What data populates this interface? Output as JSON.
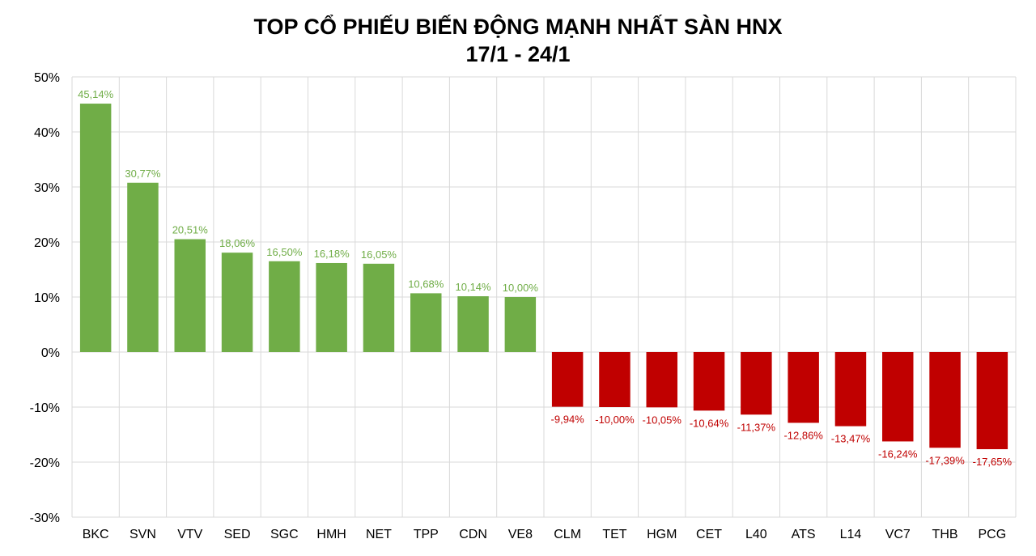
{
  "chart_data": {
    "type": "bar",
    "title": "TOP CỔ PHIẾU BIẾN ĐỘNG MẠNH NHẤT SÀN HNX",
    "subtitle": "17/1 - 24/1",
    "categories": [
      "BKC",
      "SVN",
      "VTV",
      "SED",
      "SGC",
      "HMH",
      "NET",
      "TPP",
      "CDN",
      "VE8",
      "CLM",
      "TET",
      "HGM",
      "CET",
      "L40",
      "ATS",
      "L14",
      "VC7",
      "THB",
      "PCG"
    ],
    "values": [
      45.14,
      30.77,
      20.51,
      18.06,
      16.5,
      16.18,
      16.05,
      10.68,
      10.14,
      10.0,
      -9.94,
      -10.0,
      -10.05,
      -10.64,
      -11.37,
      -12.86,
      -13.47,
      -16.24,
      -17.39,
      -17.65
    ],
    "data_labels": [
      "45,14%",
      "30,77%",
      "20,51%",
      "18,06%",
      "16,50%",
      "16,18%",
      "16,05%",
      "10,68%",
      "10,14%",
      "10,00%",
      "-9,94%",
      "-10,00%",
      "-10,05%",
      "-10,64%",
      "-11,37%",
      "-12,86%",
      "-13,47%",
      "-16,24%",
      "-17,39%",
      "-17,65%"
    ],
    "ylim": [
      -30,
      50
    ],
    "yticks": [
      50,
      40,
      30,
      20,
      10,
      0,
      -10,
      -20,
      -30
    ],
    "ytick_labels": [
      "50%",
      "40%",
      "30%",
      "20%",
      "10%",
      "0%",
      "-10%",
      "-20%",
      "-30%"
    ],
    "xlabel": "",
    "ylabel": "",
    "grid": true,
    "legend": "none",
    "colors": {
      "positive": "#70AD47",
      "negative": "#C00000",
      "grid": "#D9D9D9"
    }
  }
}
